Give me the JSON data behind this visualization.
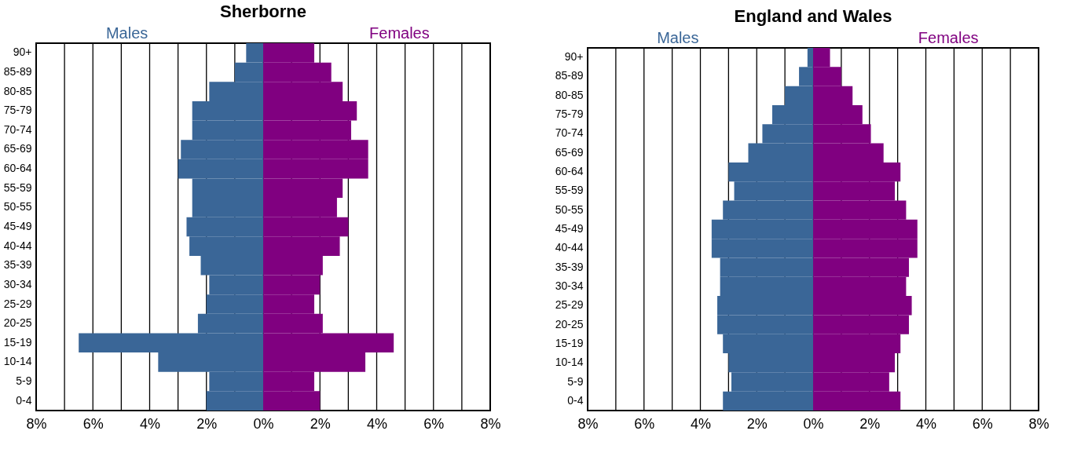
{
  "chart_data": [
    {
      "type": "bar",
      "title": "Sherborne",
      "orientation": "horizontal",
      "grid": "x",
      "stacked": true,
      "categories": [
        "90+",
        "85-89",
        "80-85",
        "75-79",
        "70-74",
        "65-69",
        "60-64",
        "55-59",
        "50-55",
        "45-49",
        "40-44",
        "35-39",
        "30-34",
        "25-29",
        "20-25",
        "15-19",
        "10-14",
        "5-9",
        "0-4"
      ],
      "series": [
        {
          "name": "Males",
          "color": "#3a6697",
          "values": [
            -0.6,
            -1.0,
            -1.9,
            -2.5,
            -2.5,
            -2.9,
            -3.0,
            -2.5,
            -2.5,
            -2.7,
            -2.6,
            -2.2,
            -1.9,
            -2.0,
            -2.3,
            -6.5,
            -3.7,
            -1.9,
            -2.0
          ]
        },
        {
          "name": "Females",
          "color": "#800080",
          "values": [
            1.8,
            2.4,
            2.8,
            3.3,
            3.1,
            3.7,
            3.7,
            2.8,
            2.6,
            3.0,
            2.7,
            2.1,
            2.0,
            1.8,
            2.1,
            4.6,
            3.6,
            1.8,
            2.0
          ]
        }
      ],
      "xlim": [
        -8,
        8
      ],
      "xticks": [
        {
          "value": -8,
          "label": "8%"
        },
        {
          "value": -7,
          "label": null
        },
        {
          "value": -6,
          "label": "6%"
        },
        {
          "value": -5,
          "label": null
        },
        {
          "value": -4,
          "label": "4%"
        },
        {
          "value": -3,
          "label": null
        },
        {
          "value": -2,
          "label": "2%"
        },
        {
          "value": -1,
          "label": null
        },
        {
          "value": 0,
          "label": "0%"
        },
        {
          "value": 1,
          "label": null
        },
        {
          "value": 2,
          "label": "2%"
        },
        {
          "value": 3,
          "label": null
        },
        {
          "value": 4,
          "label": "4%"
        },
        {
          "value": 5,
          "label": null
        },
        {
          "value": 6,
          "label": "6%"
        },
        {
          "value": 7,
          "label": null
        },
        {
          "value": 8,
          "label": "8%"
        }
      ]
    },
    {
      "type": "bar",
      "title": "England and Wales",
      "orientation": "horizontal",
      "grid": "x",
      "stacked": true,
      "categories": [
        "90+",
        "85-89",
        "80-85",
        "75-79",
        "70-74",
        "65-69",
        "60-64",
        "55-59",
        "50-55",
        "45-49",
        "40-44",
        "35-39",
        "30-34",
        "25-29",
        "20-25",
        "15-19",
        "10-14",
        "5-9",
        "0-4"
      ],
      "series": [
        {
          "name": "Males",
          "color": "#3a6697",
          "values": [
            -0.2,
            -0.5,
            -1.0,
            -1.45,
            -1.8,
            -2.3,
            -3.0,
            -2.8,
            -3.2,
            -3.6,
            -3.6,
            -3.3,
            -3.3,
            -3.4,
            -3.4,
            -3.2,
            -3.0,
            -2.9,
            -3.2
          ]
        },
        {
          "name": "Females",
          "color": "#800080",
          "values": [
            0.6,
            1.0,
            1.4,
            1.75,
            2.05,
            2.5,
            3.1,
            2.9,
            3.3,
            3.7,
            3.7,
            3.4,
            3.3,
            3.5,
            3.4,
            3.1,
            2.9,
            2.7,
            3.1
          ]
        }
      ],
      "xlim": [
        -8,
        8
      ],
      "xticks": [
        {
          "value": -8,
          "label": "8%"
        },
        {
          "value": -7,
          "label": null
        },
        {
          "value": -6,
          "label": "6%"
        },
        {
          "value": -5,
          "label": null
        },
        {
          "value": -4,
          "label": "4%"
        },
        {
          "value": -3,
          "label": null
        },
        {
          "value": -2,
          "label": "2%"
        },
        {
          "value": -1,
          "label": null
        },
        {
          "value": 0,
          "label": "0%"
        },
        {
          "value": 1,
          "label": null
        },
        {
          "value": 2,
          "label": "2%"
        },
        {
          "value": 3,
          "label": null
        },
        {
          "value": 4,
          "label": "4%"
        },
        {
          "value": 5,
          "label": null
        },
        {
          "value": 6,
          "label": "6%"
        },
        {
          "value": 7,
          "label": null
        },
        {
          "value": 8,
          "label": "8%"
        }
      ]
    }
  ]
}
